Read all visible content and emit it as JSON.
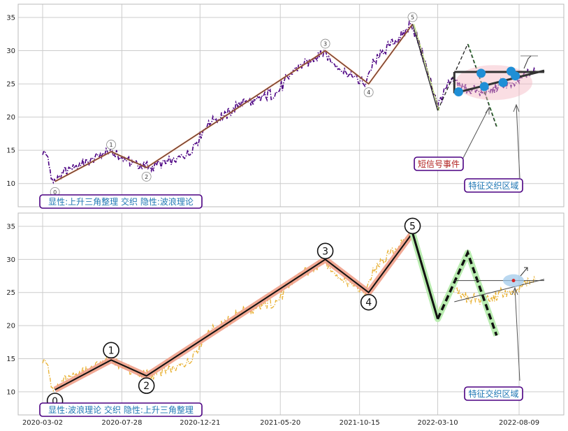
{
  "chart_data": [
    {
      "type": "line",
      "panel": "top",
      "ylim": [
        6.5,
        37
      ],
      "yticks": [
        10,
        15,
        20,
        25,
        30,
        35
      ],
      "grid": true,
      "x_dates": [
        "2020-03-02",
        "2020-07-28",
        "2020-12-21",
        "2021-05-20",
        "2021-10-15",
        "2022-03-10",
        "2022-08-09"
      ],
      "series": [
        {
          "style": "dash-dot",
          "color": "#4b0082",
          "points": [
            [
              "2020-03-02",
              14.8
            ],
            [
              "2020-03-10",
              14.2
            ],
            [
              "2020-03-18",
              11.0
            ],
            [
              "2020-03-24",
              10.4
            ],
            [
              "2020-04-05",
              11.4
            ],
            [
              "2020-04-20",
              12.2
            ],
            [
              "2020-05-10",
              12.8
            ],
            [
              "2020-06-01",
              13.6
            ],
            [
              "2020-06-20",
              14.3
            ],
            [
              "2020-07-01",
              14.8
            ],
            [
              "2020-07-20",
              14.1
            ],
            [
              "2020-08-10",
              13.4
            ],
            [
              "2020-08-30",
              12.7
            ],
            [
              "2020-09-15",
              12.4
            ],
            [
              "2020-10-01",
              12.9
            ],
            [
              "2020-10-20",
              13.2
            ],
            [
              "2020-11-10",
              13.6
            ],
            [
              "2020-11-30",
              14.4
            ],
            [
              "2020-12-21",
              17.0
            ],
            [
              "2021-01-10",
              19.5
            ],
            [
              "2021-02-01",
              20.0
            ],
            [
              "2021-02-20",
              21.0
            ],
            [
              "2021-03-10",
              22.5
            ],
            [
              "2021-03-30",
              22.0
            ],
            [
              "2021-04-15",
              23.0
            ],
            [
              "2021-05-05",
              23.5
            ],
            [
              "2021-05-20",
              24.3
            ],
            [
              "2021-06-05",
              26.0
            ],
            [
              "2021-06-25",
              27.8
            ],
            [
              "2021-07-15",
              28.5
            ],
            [
              "2021-08-01",
              29.6
            ],
            [
              "2021-08-10",
              30.0
            ],
            [
              "2021-08-25",
              28.3
            ],
            [
              "2021-09-15",
              27.0
            ],
            [
              "2021-10-01",
              26.3
            ],
            [
              "2021-10-15",
              25.5
            ],
            [
              "2021-10-25",
              25.0
            ],
            [
              "2021-11-05",
              27.5
            ],
            [
              "2021-11-25",
              29.5
            ],
            [
              "2021-12-15",
              31.0
            ],
            [
              "2022-01-05",
              32.5
            ],
            [
              "2022-01-20",
              34.0
            ],
            [
              "2022-02-01",
              31.5
            ],
            [
              "2022-02-15",
              28.0
            ],
            [
              "2022-03-01",
              24.0
            ],
            [
              "2022-03-10",
              22.0
            ],
            [
              "2022-03-20",
              23.5
            ],
            [
              "2022-04-05",
              25.5
            ],
            [
              "2022-04-25",
              24.5
            ],
            [
              "2022-05-15",
              24.0
            ],
            [
              "2022-06-01",
              23.5
            ],
            [
              "2022-06-20",
              24.0
            ],
            [
              "2022-07-10",
              25.0
            ],
            [
              "2022-07-25",
              24.5
            ],
            [
              "2022-08-09",
              25.5
            ],
            [
              "2022-08-25",
              26.5
            ],
            [
              "2022-09-10",
              27.0
            ]
          ]
        }
      ],
      "wave_points": [
        {
          "label": "0",
          "date": "2020-03-25",
          "value": 10.3
        },
        {
          "label": "1",
          "date": "2020-07-08",
          "value": 14.8
        },
        {
          "label": "2",
          "date": "2020-09-12",
          "value": 12.4
        },
        {
          "label": "3",
          "date": "2021-08-12",
          "value": 30.0
        },
        {
          "label": "4",
          "date": "2021-11-01",
          "value": 25.0
        },
        {
          "label": "5",
          "date": "2022-01-22",
          "value": 34.0
        }
      ],
      "projection": [
        [
          "2022-01-22",
          34.0
        ],
        [
          "2022-03-10",
          21.0
        ],
        [
          "2022-05-05",
          31.0
        ],
        [
          "2022-06-28",
          18.5
        ]
      ],
      "triangle": {
        "upper": [
          [
            "2022-04-10",
            26.8
          ],
          [
            "2022-09-25",
            26.8
          ]
        ],
        "lower": [
          [
            "2022-04-10",
            23.6
          ],
          [
            "2022-09-25",
            27.0
          ]
        ],
        "markers": [
          [
            "2022-04-18",
            23.8
          ],
          [
            "2022-05-30",
            26.6
          ],
          [
            "2022-06-05",
            24.6
          ],
          [
            "2022-07-10",
            25.2
          ],
          [
            "2022-07-25",
            26.9
          ],
          [
            "2022-08-02",
            26.2
          ]
        ]
      },
      "annotations": [
        {
          "text": "短信号事件",
          "color": "#b22222"
        },
        {
          "text": "特征交织区域",
          "color": "#1f77b4"
        },
        {
          "text": "显性:上升三角整理 交织 隐性:波浪理论",
          "color": "#1f77b4"
        }
      ]
    },
    {
      "type": "line",
      "panel": "bottom",
      "ylim": [
        6.5,
        37
      ],
      "yticks": [
        10,
        15,
        20,
        25,
        30,
        35
      ],
      "grid": true,
      "x_dates": [
        "2020-03-02",
        "2020-07-28",
        "2020-12-21",
        "2021-05-20",
        "2021-10-15",
        "2022-03-10",
        "2022-08-09"
      ],
      "series": [
        {
          "style": "dash-dot",
          "color": "#e8b030",
          "same_as": "top"
        }
      ],
      "annotations": [
        {
          "text": "特征交织区域",
          "color": "#1f77b4"
        },
        {
          "text": "显性:波浪理论 交织 隐性:上升三角整理",
          "color": "#1f77b4"
        }
      ]
    }
  ]
}
